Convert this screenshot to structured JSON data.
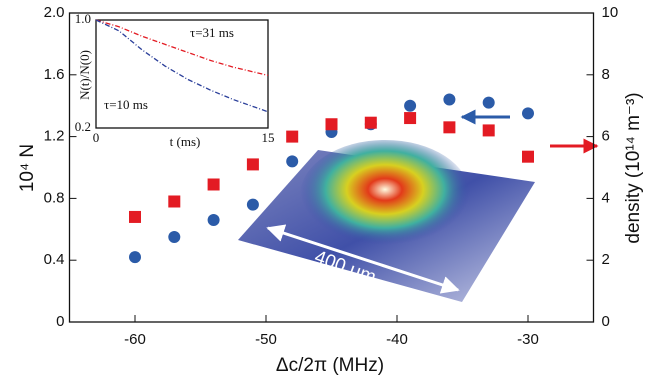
{
  "chart_data": [
    {
      "type": "scatter",
      "x_label": "Δc/2π  (MHz)",
      "y_label": "10⁴ N",
      "y2_label": "density (10¹⁴ m⁻³)",
      "annotation": "400 μm",
      "xlim": [
        -65,
        -25
      ],
      "xticks": [
        -60,
        -50,
        -40,
        -30
      ],
      "ylim": [
        0,
        2.0
      ],
      "yticks": [
        0,
        0.4,
        0.8,
        1.2,
        1.6,
        {
          "value": 2.0,
          "label": "2.0"
        }
      ],
      "y2lim": [
        0,
        10
      ],
      "y2ticks": [
        0,
        2,
        4,
        6,
        8,
        10
      ],
      "x": [
        -60,
        -57,
        -54,
        -51,
        -48,
        -45,
        -42,
        -39,
        -36,
        -33,
        -30
      ],
      "series": [
        {
          "color": "#2b5ba8",
          "marker": "circle",
          "values": [
            0.42,
            0.55,
            0.66,
            0.76,
            1.04,
            1.23,
            1.28,
            1.4,
            1.44,
            1.42,
            1.35
          ]
        },
        {
          "color": "#e31b23",
          "marker": "square",
          "axis": "y2",
          "values": [
            3.4,
            3.9,
            4.45,
            5.1,
            6.0,
            6.4,
            6.45,
            6.6,
            6.3,
            6.2,
            5.35
          ]
        }
      ]
    },
    {
      "type": "line",
      "x_label": "t (ms)",
      "y_label": "N(t)/N(0)",
      "xlim": [
        0,
        15
      ],
      "xticks": [
        0,
        15
      ],
      "ylim": [
        0.2,
        1.0
      ],
      "yticks": [
        0.2,
        {
          "value": 1.0,
          "label": "1.0"
        }
      ],
      "x": [
        0,
        2,
        4,
        6,
        8,
        10,
        12,
        15
      ],
      "series": [
        {
          "name": "τ=31 ms",
          "color": "#e31b23",
          "values": [
            1.0,
            0.95,
            0.88,
            0.82,
            0.76,
            0.7,
            0.65,
            0.59
          ]
        },
        {
          "name": "τ=10 ms",
          "color": "#2b3f9a",
          "values": [
            1.0,
            0.92,
            0.78,
            0.66,
            0.56,
            0.48,
            0.41,
            0.32
          ]
        }
      ]
    }
  ]
}
